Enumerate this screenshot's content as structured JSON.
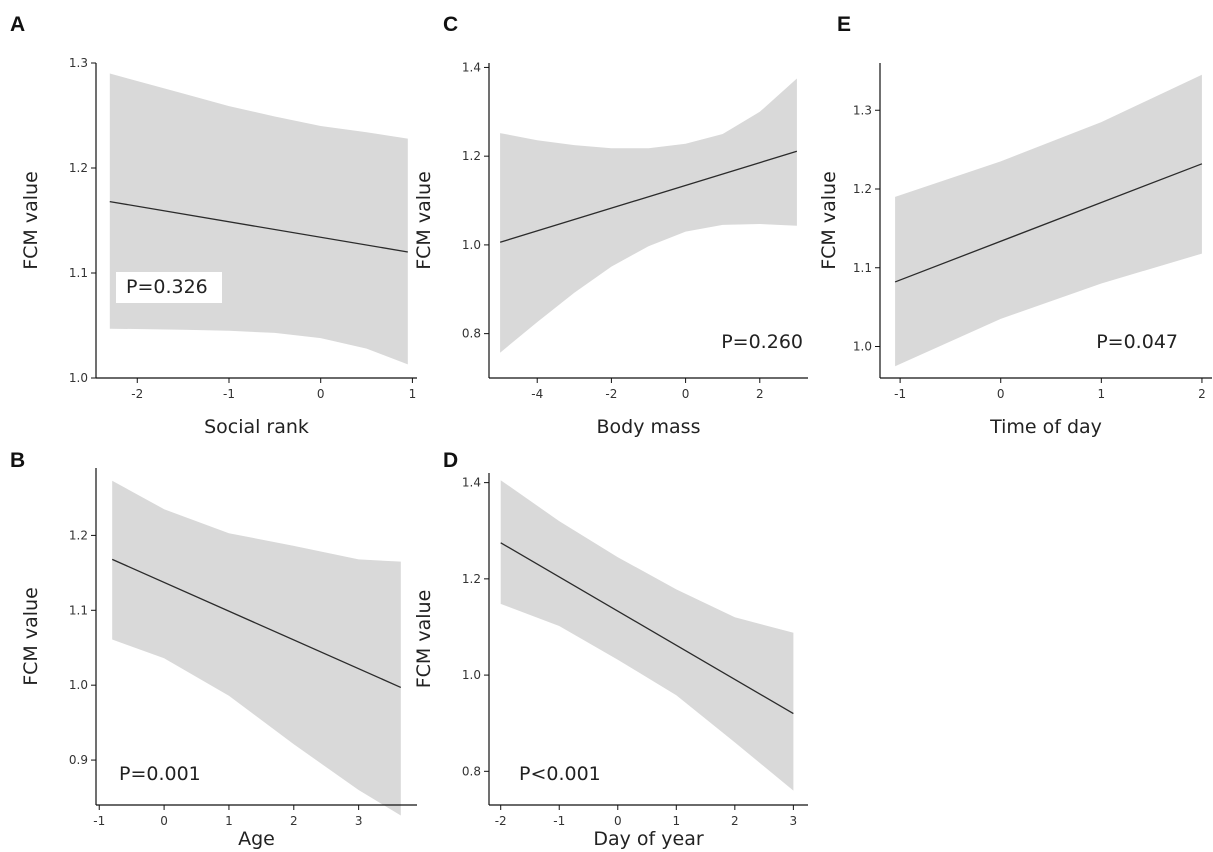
{
  "style": {
    "band_color": "#d9d9d9",
    "line_color": "#2b2b2b",
    "p_box_color": "#ffffff"
  },
  "chart_data": [
    {
      "id": "A",
      "type": "line",
      "panel_label": "A",
      "xlabel": "Social rank",
      "ylabel": "FCM value",
      "xlim": [
        -2.45,
        1.05
      ],
      "ylim": [
        1.0,
        1.3
      ],
      "xticks": [
        -2,
        -1,
        0,
        1
      ],
      "yticks": [
        1.0,
        1.1,
        1.2,
        1.3
      ],
      "xtick_labels": [
        "-2",
        "-1",
        "0",
        "1"
      ],
      "ytick_labels": [
        "1.0",
        "1.1",
        "1.2",
        "1.3"
      ],
      "fit": {
        "x": [
          -2.3,
          0.95
        ],
        "y": [
          1.168,
          1.12
        ]
      },
      "band": {
        "x": [
          -2.3,
          -1.5,
          -1.0,
          -0.5,
          0.0,
          0.5,
          0.95
        ],
        "lower": [
          1.047,
          1.046,
          1.045,
          1.043,
          1.038,
          1.028,
          1.013
        ],
        "upper": [
          1.29,
          1.271,
          1.259,
          1.249,
          1.24,
          1.234,
          1.228
        ]
      },
      "p_value": "P=0.326",
      "p_box": true
    },
    {
      "id": "B",
      "type": "line",
      "panel_label": "B",
      "xlabel": "Age",
      "ylabel": "FCM value",
      "xlim": [
        -1.05,
        3.9
      ],
      "ylim": [
        0.84,
        1.29
      ],
      "xticks": [
        -1,
        0,
        1,
        2,
        3
      ],
      "yticks": [
        0.9,
        1.0,
        1.1,
        1.2
      ],
      "xtick_labels": [
        "-1",
        "0",
        "1",
        "2",
        "3"
      ],
      "ytick_labels": [
        "0.9",
        "1.0",
        "1.1",
        "1.2"
      ],
      "fit": {
        "x": [
          -0.8,
          3.65
        ],
        "y": [
          1.168,
          0.997
        ]
      },
      "band": {
        "x": [
          -0.8,
          0.0,
          1.0,
          2.0,
          3.0,
          3.65
        ],
        "lower": [
          1.061,
          1.036,
          0.986,
          0.921,
          0.86,
          0.826
        ],
        "upper": [
          1.273,
          1.235,
          1.203,
          1.186,
          1.168,
          1.165
        ]
      },
      "p_value": "P=0.001",
      "p_box": false
    },
    {
      "id": "C",
      "type": "line",
      "panel_label": "C",
      "xlabel": "Body mass",
      "ylabel": "FCM value",
      "xlim": [
        -5.3,
        3.3
      ],
      "ylim": [
        0.7,
        1.41
      ],
      "xticks": [
        -4,
        -2,
        0,
        2
      ],
      "yticks": [
        0.8,
        1.0,
        1.2,
        1.4
      ],
      "xtick_labels": [
        "-4",
        "-2",
        "0",
        "2"
      ],
      "ytick_labels": [
        "0.8",
        "1.0",
        "1.2",
        "1.4"
      ],
      "fit": {
        "x": [
          -5.0,
          3.0
        ],
        "y": [
          1.006,
          1.211
        ]
      },
      "band": {
        "x": [
          -5.0,
          -4.0,
          -3.0,
          -2.0,
          -1.0,
          0.0,
          1.0,
          2.0,
          3.0
        ],
        "lower": [
          0.757,
          0.826,
          0.892,
          0.951,
          0.997,
          1.03,
          1.045,
          1.047,
          1.043
        ],
        "upper": [
          1.252,
          1.236,
          1.225,
          1.218,
          1.218,
          1.228,
          1.25,
          1.3,
          1.375
        ]
      },
      "p_value": "P=0.260",
      "p_box": false
    },
    {
      "id": "D",
      "type": "line",
      "panel_label": "D",
      "xlabel": "Day of year",
      "ylabel": "FCM value",
      "xlim": [
        -2.2,
        3.25
      ],
      "ylim": [
        0.73,
        1.42
      ],
      "xticks": [
        -2,
        -1,
        0,
        1,
        2,
        3
      ],
      "yticks": [
        0.8,
        1.0,
        1.2,
        1.4
      ],
      "xtick_labels": [
        "-2",
        "-1",
        "0",
        "1",
        "2",
        "3"
      ],
      "ytick_labels": [
        "0.8",
        "1.0",
        "1.2",
        "1.4"
      ],
      "fit": {
        "x": [
          -2.0,
          3.0
        ],
        "y": [
          1.275,
          0.92
        ]
      },
      "band": {
        "x": [
          -2.0,
          -1.0,
          0.0,
          1.0,
          2.0,
          3.0
        ],
        "lower": [
          1.148,
          1.102,
          1.032,
          0.958,
          0.86,
          0.76
        ],
        "upper": [
          1.405,
          1.32,
          1.245,
          1.178,
          1.12,
          1.088
        ]
      },
      "p_value": "P<0.001",
      "p_box": false
    },
    {
      "id": "E",
      "type": "line",
      "panel_label": "E",
      "xlabel": "Time of day",
      "ylabel": "FCM value",
      "xlim": [
        -1.2,
        2.1
      ],
      "ylim": [
        0.96,
        1.36
      ],
      "xticks": [
        -1,
        0,
        1,
        2
      ],
      "yticks": [
        1.0,
        1.1,
        1.2,
        1.3
      ],
      "xtick_labels": [
        "-1",
        "0",
        "1",
        "2"
      ],
      "ytick_labels": [
        "1.0",
        "1.1",
        "1.2",
        "1.3"
      ],
      "fit": {
        "x": [
          -1.05,
          2.0
        ],
        "y": [
          1.082,
          1.232
        ]
      },
      "band": {
        "x": [
          -1.05,
          0.0,
          1.0,
          2.0
        ],
        "lower": [
          0.975,
          1.035,
          1.08,
          1.118
        ],
        "upper": [
          1.19,
          1.235,
          1.285,
          1.345
        ]
      },
      "p_value": "P=0.047",
      "p_box": false
    }
  ]
}
